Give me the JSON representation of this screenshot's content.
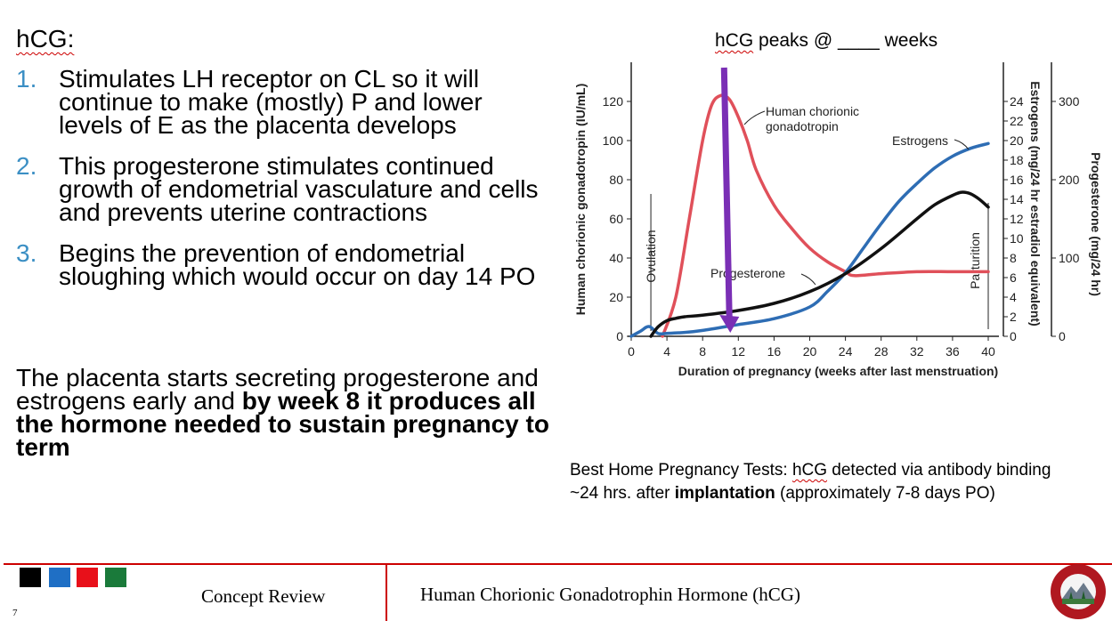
{
  "slide": {
    "title": "hCG:",
    "points": [
      {
        "num": "1.",
        "text": "Stimulates LH receptor on CL so it will continue to make (mostly) P and lower levels of E as the placenta develops"
      },
      {
        "num": "2.",
        "text": "This progesterone stimulates continued growth of endometrial vasculature and cells and prevents uterine contractions"
      },
      {
        "num": "3.",
        "text": "Begins the prevention of endometrial sloughing which would occur on day 14 PO"
      }
    ],
    "placenta_plain": "The placenta starts secreting progesterone and estrogens early and ",
    "placenta_bold": "by week 8 it produces all the hormone needed to sustain pregnancy to term",
    "peaks_prefix": "hCG",
    "peaks_rest": " peaks @ ____ weeks",
    "tests_line1_a": "Best Home Pregnancy Tests: ",
    "tests_line1_u": "hCG",
    "tests_line1_b": " detected via antibody binding",
    "tests_line2_a": "~24 hrs. after ",
    "tests_line2_bold": "implantation",
    "tests_line2_b": " (approximately 7-8 days PO)"
  },
  "footer": {
    "left": "Concept Review",
    "right": "Human Chorionic Gonadotrophin Hormone (hCG)",
    "page": "7",
    "squares": [
      "#000000",
      "#1f6fc5",
      "#e8101a",
      "#1a7a3a"
    ],
    "logo_text": "ROCKY VISTA UNIVERSITY"
  },
  "chart_data": {
    "type": "line",
    "xlabel": "Duration of pregnancy (weeks after last menstruation)",
    "x_ticks": [
      0,
      4,
      8,
      12,
      16,
      20,
      24,
      28,
      32,
      36,
      40
    ],
    "xlim": [
      0,
      40
    ],
    "y_left": {
      "label": "Human chorionic gonadotropin (IU/mL)",
      "ticks": [
        0,
        20,
        40,
        60,
        80,
        100,
        120
      ],
      "ylim": [
        0,
        140
      ]
    },
    "y_mid": {
      "label": "Estrogens (mg/24 hr estradiol equivalent)",
      "ticks": [
        0,
        2,
        4,
        6,
        8,
        10,
        12,
        14,
        16,
        18,
        20,
        22,
        24
      ],
      "ylim": [
        0,
        28
      ]
    },
    "y_right": {
      "label": "Progesterone (mg/24 hr)",
      "ticks": [
        0,
        100,
        200,
        300
      ],
      "ylim": [
        0,
        350
      ]
    },
    "series": [
      {
        "name": "Human chorionic gonadotropin",
        "color": "#e0505a",
        "axis": "left",
        "points": [
          [
            3.5,
            0
          ],
          [
            5,
            20
          ],
          [
            6.5,
            60
          ],
          [
            8,
            100
          ],
          [
            9,
            118
          ],
          [
            10,
            123
          ],
          [
            11,
            121
          ],
          [
            12,
            112
          ],
          [
            13,
            100
          ],
          [
            14,
            85
          ],
          [
            16,
            67
          ],
          [
            18,
            55
          ],
          [
            20,
            45
          ],
          [
            22,
            38
          ],
          [
            24,
            33
          ],
          [
            25,
            31
          ],
          [
            28,
            32
          ],
          [
            32,
            33
          ],
          [
            36,
            33
          ],
          [
            40,
            33
          ]
        ]
      },
      {
        "name": "Estrogens",
        "color": "#2e6db4",
        "axis": "mid",
        "points": [
          [
            0,
            0
          ],
          [
            1,
            0.5
          ],
          [
            2,
            1
          ],
          [
            3,
            0.3
          ],
          [
            4,
            0.3
          ],
          [
            6,
            0.4
          ],
          [
            8,
            0.6
          ],
          [
            12,
            1.2
          ],
          [
            16,
            1.8
          ],
          [
            20,
            3
          ],
          [
            22,
            4.6
          ],
          [
            24,
            6.5
          ],
          [
            26,
            9
          ],
          [
            28,
            11.5
          ],
          [
            30,
            13.8
          ],
          [
            32,
            15.6
          ],
          [
            34,
            17.2
          ],
          [
            36,
            18.4
          ],
          [
            38,
            19.2
          ],
          [
            40,
            19.7
          ]
        ]
      },
      {
        "name": "Progesterone",
        "color": "#111111",
        "axis": "right",
        "points": [
          [
            2.2,
            0
          ],
          [
            3,
            12
          ],
          [
            4,
            20
          ],
          [
            5,
            23
          ],
          [
            6,
            25
          ],
          [
            8,
            27
          ],
          [
            12,
            33
          ],
          [
            16,
            42
          ],
          [
            20,
            57
          ],
          [
            24,
            80
          ],
          [
            28,
            112
          ],
          [
            32,
            150
          ],
          [
            34,
            168
          ],
          [
            36,
            180
          ],
          [
            37,
            184
          ],
          [
            38,
            182
          ],
          [
            39,
            175
          ],
          [
            40,
            165
          ]
        ]
      }
    ],
    "annotations": [
      "Human chorionic gonadotropin",
      "Estrogens",
      "Progesterone",
      "Ovulation",
      "Parturition"
    ],
    "arrow_week": 11
  }
}
